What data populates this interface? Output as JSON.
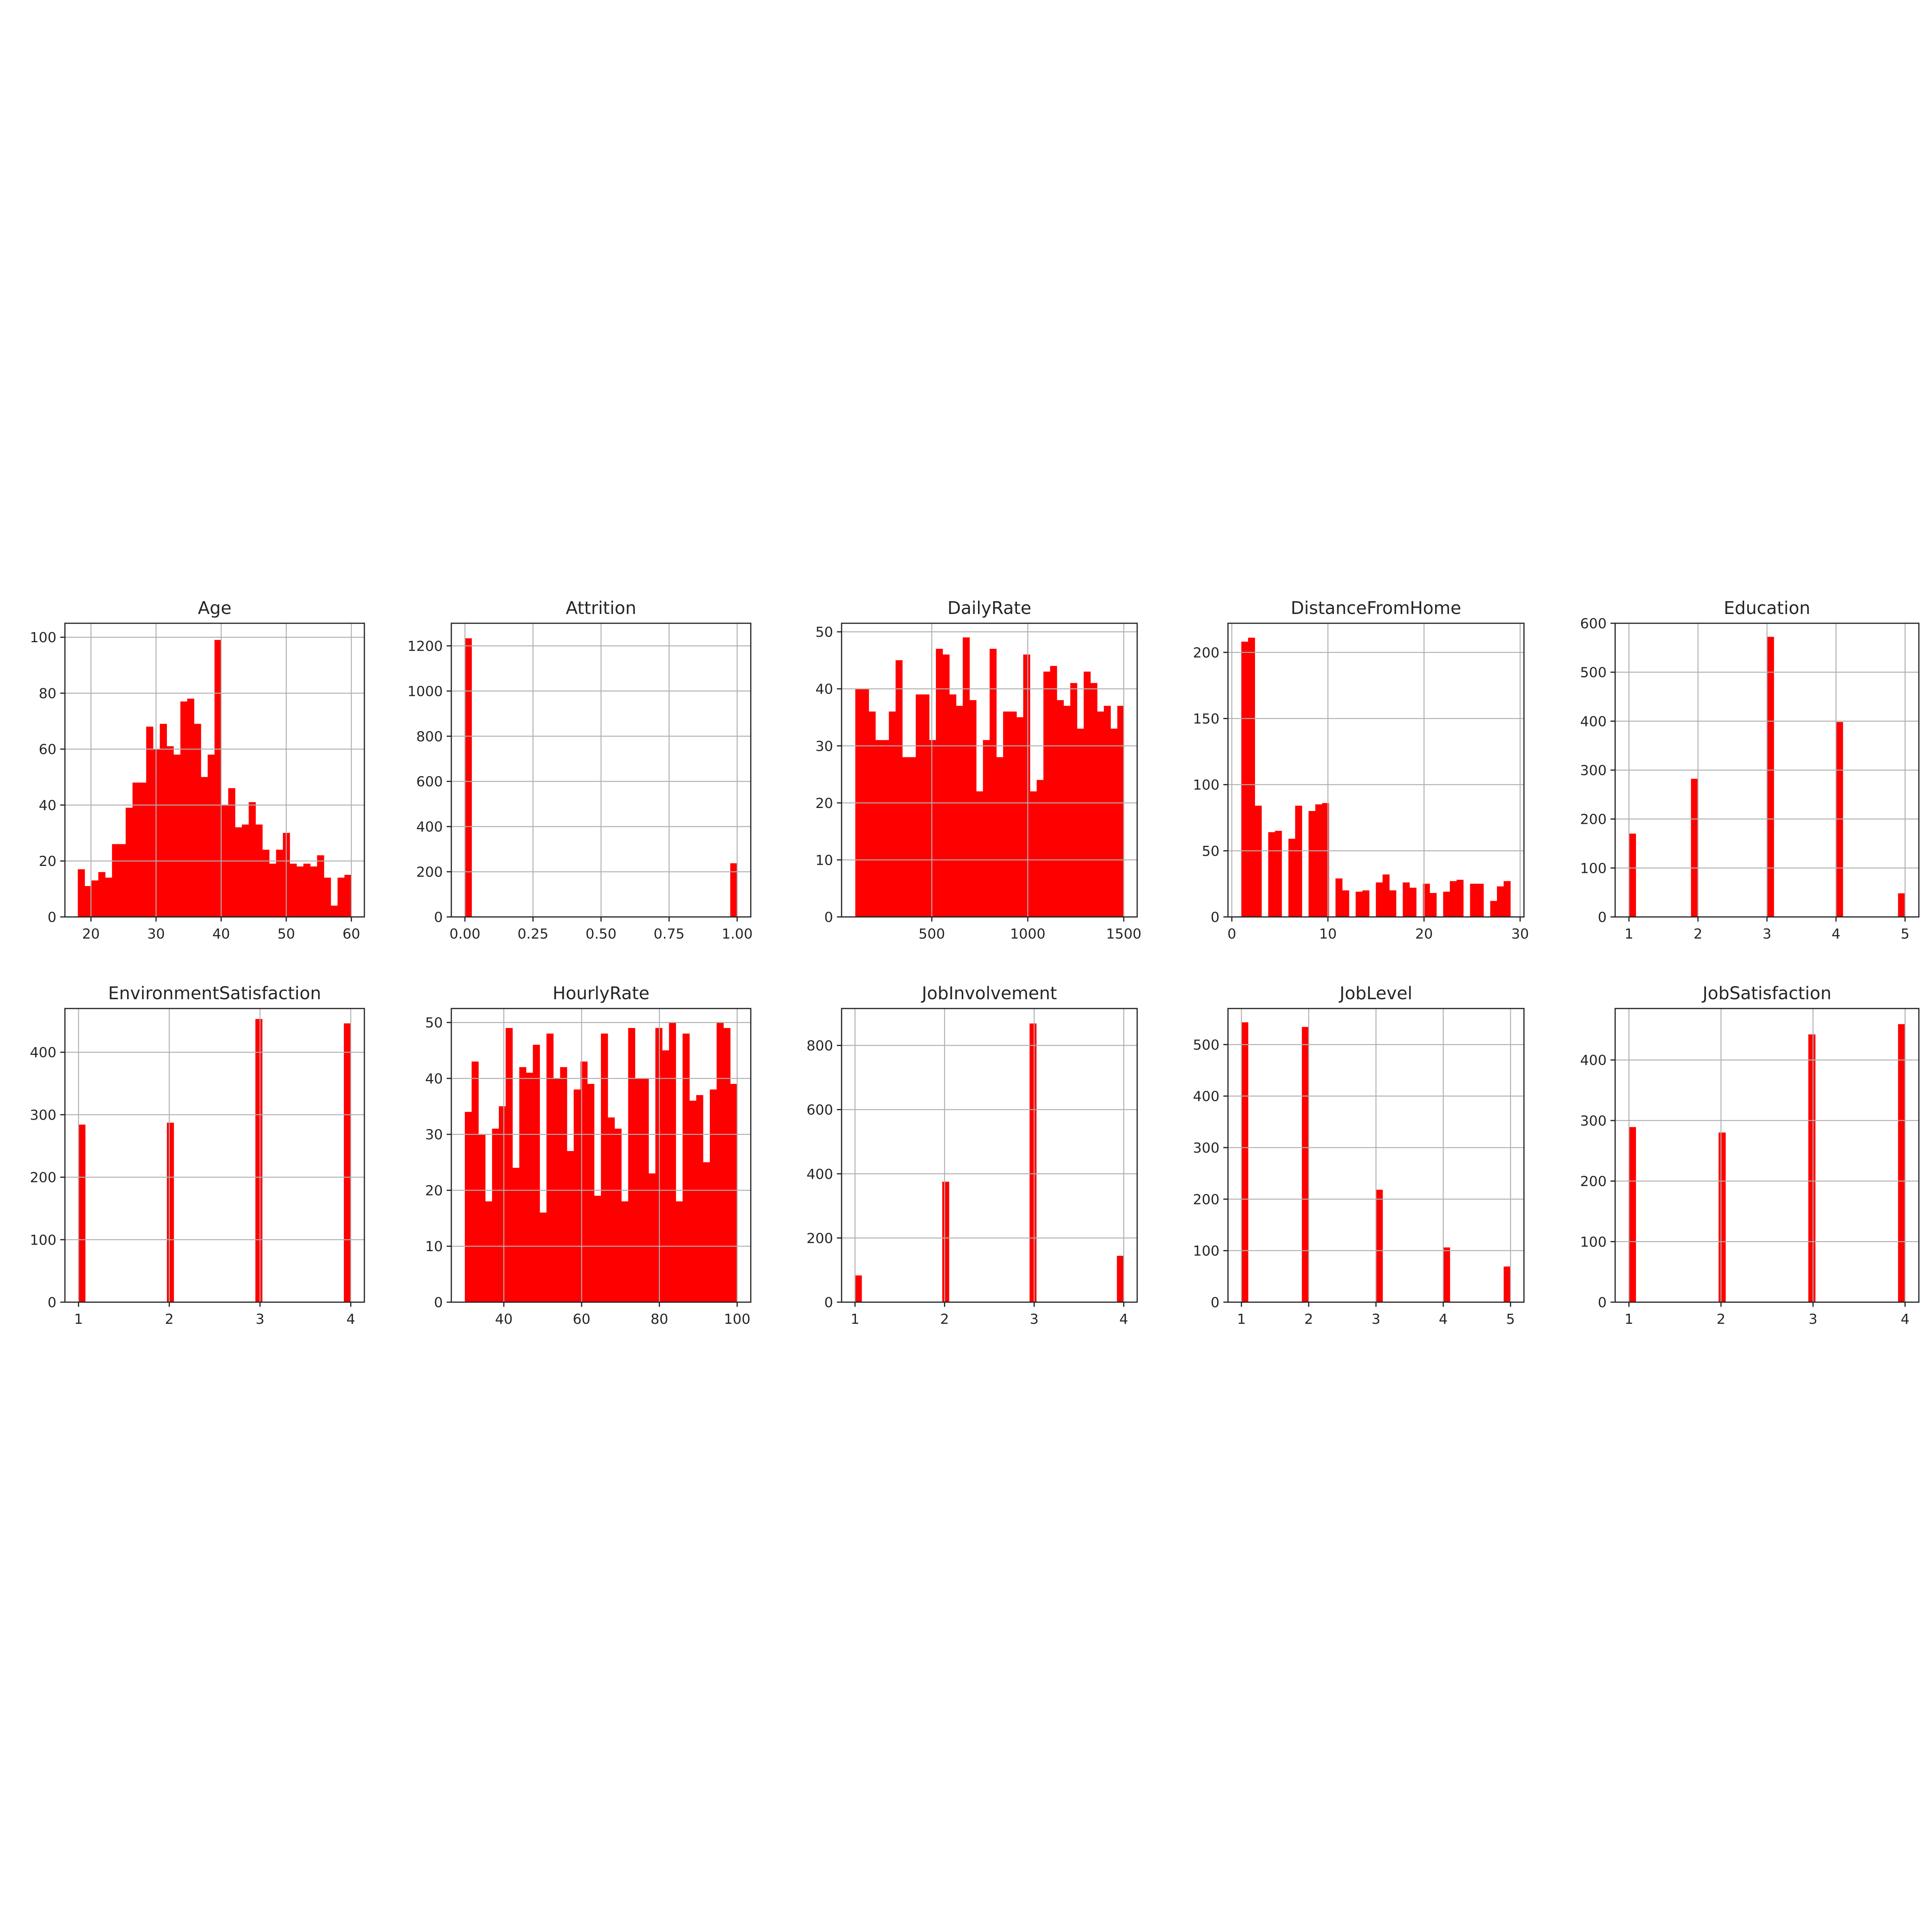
{
  "figure": {
    "background": "#ffffff",
    "bar_color": "#ff0000"
  },
  "chart_data": [
    {
      "type": "bar",
      "title": "Age",
      "grid": true,
      "xlim": [
        16,
        62
      ],
      "ylim": [
        0,
        105
      ],
      "xticks": [
        20,
        30,
        40,
        50,
        60
      ],
      "yticks": [
        0,
        20,
        40,
        60,
        80,
        100
      ],
      "bins": [
        [
          18.0,
          19.05,
          17
        ],
        [
          19.05,
          20.1,
          11
        ],
        [
          20.1,
          21.15,
          13
        ],
        [
          21.15,
          22.2,
          16
        ],
        [
          22.2,
          23.25,
          14
        ],
        [
          23.25,
          24.3,
          26
        ],
        [
          24.3,
          25.35,
          26
        ],
        [
          25.35,
          26.4,
          39
        ],
        [
          26.4,
          27.45,
          48
        ],
        [
          27.45,
          28.5,
          48
        ],
        [
          28.5,
          29.55,
          68
        ],
        [
          29.55,
          30.6,
          60
        ],
        [
          30.6,
          31.65,
          69
        ],
        [
          31.65,
          32.7,
          61
        ],
        [
          32.7,
          33.75,
          58
        ],
        [
          33.75,
          34.8,
          77
        ],
        [
          34.8,
          35.85,
          78
        ],
        [
          35.85,
          36.9,
          69
        ],
        [
          36.9,
          37.95,
          50
        ],
        [
          37.95,
          39.0,
          58
        ],
        [
          39.0,
          40.05,
          99
        ],
        [
          40.05,
          41.1,
          40
        ],
        [
          41.1,
          42.15,
          46
        ],
        [
          42.15,
          43.2,
          32
        ],
        [
          43.2,
          44.25,
          33
        ],
        [
          44.25,
          45.3,
          41
        ],
        [
          45.3,
          46.35,
          33
        ],
        [
          46.35,
          47.4,
          24
        ],
        [
          47.4,
          48.45,
          19
        ],
        [
          48.45,
          49.5,
          24
        ],
        [
          49.5,
          50.55,
          30
        ],
        [
          50.55,
          51.6,
          19
        ],
        [
          51.6,
          52.65,
          18
        ],
        [
          52.65,
          53.7,
          19
        ],
        [
          53.7,
          54.75,
          18
        ],
        [
          54.75,
          55.8,
          22
        ],
        [
          55.8,
          56.85,
          14
        ],
        [
          56.85,
          57.9,
          4
        ],
        [
          57.9,
          58.95,
          14
        ],
        [
          58.95,
          60.0,
          15
        ]
      ]
    },
    {
      "type": "bar",
      "title": "Attrition",
      "grid": true,
      "xlim": [
        -0.05,
        1.05
      ],
      "ylim": [
        0,
        1300
      ],
      "xticks": [
        0.0,
        0.25,
        0.5,
        0.75,
        1.0
      ],
      "xticklabels": [
        "0.00",
        "0.25",
        "0.50",
        "0.75",
        "1.00"
      ],
      "yticks": [
        0,
        200,
        400,
        600,
        800,
        1000,
        1200
      ],
      "bins": [
        [
          0.0,
          0.025,
          1233
        ],
        [
          0.975,
          1.0,
          237
        ]
      ]
    },
    {
      "type": "bar",
      "title": "DailyRate",
      "grid": true,
      "xlim": [
        30,
        1570
      ],
      "ylim": [
        0,
        51.5
      ],
      "xticks": [
        500,
        1000,
        1500
      ],
      "yticks": [
        0,
        10,
        20,
        30,
        40,
        50
      ],
      "bins": [
        [
          102,
          137,
          40
        ],
        [
          137,
          172,
          40
        ],
        [
          172,
          207,
          36
        ],
        [
          207,
          242,
          31
        ],
        [
          242,
          277,
          31
        ],
        [
          277,
          312,
          36
        ],
        [
          312,
          347,
          45
        ],
        [
          347,
          382,
          28
        ],
        [
          382,
          417,
          28
        ],
        [
          417,
          452,
          39
        ],
        [
          452,
          487,
          39
        ],
        [
          487,
          522,
          31
        ],
        [
          522,
          557,
          47
        ],
        [
          557,
          592,
          46
        ],
        [
          592,
          627,
          39
        ],
        [
          627,
          662,
          37
        ],
        [
          662,
          697,
          49
        ],
        [
          697,
          732,
          38
        ],
        [
          732,
          767,
          22
        ],
        [
          767,
          802,
          31
        ],
        [
          802,
          837,
          47
        ],
        [
          837,
          872,
          28
        ],
        [
          872,
          907,
          36
        ],
        [
          907,
          942,
          36
        ],
        [
          942,
          977,
          35
        ],
        [
          977,
          1012,
          46
        ],
        [
          1012,
          1047,
          22
        ],
        [
          1047,
          1082,
          24
        ],
        [
          1082,
          1117,
          43
        ],
        [
          1117,
          1152,
          44
        ],
        [
          1152,
          1187,
          38
        ],
        [
          1187,
          1222,
          37
        ],
        [
          1222,
          1257,
          41
        ],
        [
          1257,
          1292,
          33
        ],
        [
          1292,
          1327,
          43
        ],
        [
          1327,
          1362,
          41
        ],
        [
          1362,
          1397,
          36
        ],
        [
          1397,
          1432,
          37
        ],
        [
          1432,
          1467,
          33
        ],
        [
          1467,
          1502,
          37
        ]
      ]
    },
    {
      "type": "bar",
      "title": "DistanceFromHome",
      "grid": true,
      "xlim": [
        -0.4,
        30.4
      ],
      "ylim": [
        0,
        222
      ],
      "xticks": [
        0,
        10,
        20,
        30
      ],
      "yticks": [
        0,
        50,
        100,
        150,
        200
      ],
      "bins": [
        [
          1.0,
          1.7,
          208
        ],
        [
          1.7,
          2.4,
          211
        ],
        [
          2.4,
          3.1,
          84
        ],
        [
          3.8,
          4.5,
          64
        ],
        [
          4.5,
          5.2,
          65
        ],
        [
          5.9,
          6.6,
          59
        ],
        [
          6.6,
          7.3,
          84
        ],
        [
          7.3,
          8.0,
          0
        ],
        [
          8.0,
          8.7,
          80
        ],
        [
          8.7,
          9.4,
          85
        ],
        [
          9.4,
          10.1,
          86
        ],
        [
          10.8,
          11.5,
          29
        ],
        [
          11.5,
          12.2,
          20
        ],
        [
          12.9,
          13.6,
          19
        ],
        [
          13.6,
          14.3,
          20
        ],
        [
          14.3,
          15.0,
          0
        ],
        [
          15.0,
          15.7,
          26
        ],
        [
          15.7,
          16.4,
          32
        ],
        [
          16.4,
          17.1,
          20
        ],
        [
          17.8,
          18.5,
          26
        ],
        [
          18.5,
          19.2,
          22
        ],
        [
          19.9,
          20.6,
          25
        ],
        [
          20.6,
          21.3,
          18
        ],
        [
          22.0,
          22.7,
          19
        ],
        [
          22.7,
          23.4,
          27
        ],
        [
          23.4,
          24.1,
          28
        ],
        [
          24.8,
          25.5,
          25
        ],
        [
          25.5,
          26.2,
          25
        ],
        [
          26.9,
          27.6,
          12
        ],
        [
          27.6,
          28.3,
          23
        ],
        [
          28.3,
          29.0,
          27
        ]
      ]
    },
    {
      "type": "bar",
      "title": "Education",
      "grid": true,
      "xlim": [
        0.8,
        5.2
      ],
      "ylim": [
        0,
        600
      ],
      "xticks": [
        1,
        2,
        3,
        4,
        5
      ],
      "yticks": [
        0,
        100,
        200,
        300,
        400,
        500,
        600
      ],
      "bins": [
        [
          1.0,
          1.1,
          170
        ],
        [
          1.9,
          2.0,
          282
        ],
        [
          3.0,
          3.1,
          572
        ],
        [
          4.0,
          4.1,
          398
        ],
        [
          4.9,
          5.0,
          48
        ]
      ]
    },
    {
      "type": "bar",
      "title": "EnvironmentSatisfaction",
      "grid": true,
      "xlim": [
        0.85,
        4.15
      ],
      "ylim": [
        0,
        470
      ],
      "xticks": [
        1,
        2,
        3,
        4
      ],
      "yticks": [
        0,
        100,
        200,
        300,
        400
      ],
      "bins": [
        [
          1.0,
          1.075,
          284
        ],
        [
          1.975,
          2.05,
          287
        ],
        [
          2.95,
          3.025,
          453
        ],
        [
          3.925,
          4.0,
          446
        ]
      ]
    },
    {
      "type": "bar",
      "title": "HourlyRate",
      "grid": true,
      "xlim": [
        26.5,
        103.5
      ],
      "ylim": [
        0,
        52.5
      ],
      "xticks": [
        40,
        60,
        80,
        100
      ],
      "yticks": [
        0,
        10,
        20,
        30,
        40,
        50
      ],
      "bins": [
        [
          30.0,
          31.75,
          34
        ],
        [
          31.75,
          33.5,
          43
        ],
        [
          33.5,
          35.25,
          30
        ],
        [
          35.25,
          37.0,
          18
        ],
        [
          37.0,
          38.75,
          31
        ],
        [
          38.75,
          40.5,
          35
        ],
        [
          40.5,
          42.25,
          49
        ],
        [
          42.25,
          44.0,
          24
        ],
        [
          44.0,
          45.75,
          42
        ],
        [
          45.75,
          47.5,
          41
        ],
        [
          47.5,
          49.25,
          46
        ],
        [
          49.25,
          51.0,
          16
        ],
        [
          51.0,
          52.75,
          48
        ],
        [
          52.75,
          54.5,
          40
        ],
        [
          54.5,
          56.25,
          42
        ],
        [
          56.25,
          58.0,
          27
        ],
        [
          58.0,
          59.75,
          38
        ],
        [
          59.75,
          61.5,
          43
        ],
        [
          61.5,
          63.25,
          39
        ],
        [
          63.25,
          65.0,
          19
        ],
        [
          65.0,
          66.75,
          48
        ],
        [
          66.75,
          68.5,
          33
        ],
        [
          68.5,
          70.25,
          31
        ],
        [
          70.25,
          72.0,
          18
        ],
        [
          72.0,
          73.75,
          49
        ],
        [
          73.75,
          75.5,
          40
        ],
        [
          75.5,
          77.25,
          40
        ],
        [
          77.25,
          79.0,
          23
        ],
        [
          79.0,
          80.75,
          49
        ],
        [
          80.75,
          82.5,
          45
        ],
        [
          82.5,
          84.25,
          50
        ],
        [
          84.25,
          86.0,
          18
        ],
        [
          86.0,
          87.75,
          48
        ],
        [
          87.75,
          89.5,
          36
        ],
        [
          89.5,
          91.25,
          37
        ],
        [
          91.25,
          93.0,
          25
        ],
        [
          93.0,
          94.75,
          38
        ],
        [
          94.75,
          96.5,
          50
        ],
        [
          96.5,
          98.25,
          49
        ],
        [
          98.25,
          100.0,
          39
        ]
      ]
    },
    {
      "type": "bar",
      "title": "JobInvolvement",
      "grid": true,
      "xlim": [
        0.85,
        4.15
      ],
      "ylim": [
        0,
        915
      ],
      "xticks": [
        1,
        2,
        3,
        4
      ],
      "yticks": [
        0,
        200,
        400,
        600,
        800
      ],
      "bins": [
        [
          1.0,
          1.075,
          83
        ],
        [
          1.975,
          2.05,
          375
        ],
        [
          2.95,
          3.025,
          868
        ],
        [
          3.925,
          4.0,
          144
        ]
      ]
    },
    {
      "type": "bar",
      "title": "JobLevel",
      "grid": true,
      "xlim": [
        0.8,
        5.2
      ],
      "ylim": [
        0,
        570
      ],
      "xticks": [
        1,
        2,
        3,
        4,
        5
      ],
      "yticks": [
        0,
        100,
        200,
        300,
        400,
        500
      ],
      "bins": [
        [
          1.0,
          1.1,
          543
        ],
        [
          1.9,
          2.0,
          534
        ],
        [
          3.0,
          3.1,
          218
        ],
        [
          4.0,
          4.1,
          106
        ],
        [
          4.9,
          5.0,
          69
        ]
      ]
    },
    {
      "type": "bar",
      "title": "JobSatisfaction",
      "grid": true,
      "xlim": [
        0.85,
        4.15
      ],
      "ylim": [
        0,
        485
      ],
      "xticks": [
        1,
        2,
        3,
        4
      ],
      "yticks": [
        0,
        100,
        200,
        300,
        400
      ],
      "bins": [
        [
          1.0,
          1.075,
          289
        ],
        [
          1.975,
          2.05,
          280
        ],
        [
          2.95,
          3.025,
          442
        ],
        [
          3.925,
          4.0,
          459
        ]
      ]
    }
  ]
}
